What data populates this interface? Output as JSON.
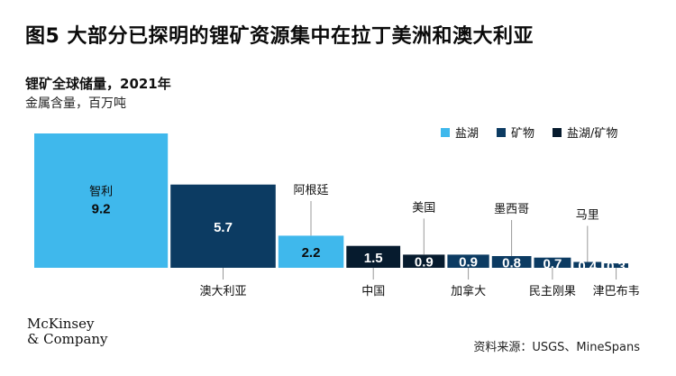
{
  "title": "图5 大部分已探明的锂矿资源集中在拉丁美洲和澳大利亚",
  "subtitle": "锂矿全球储量，2021年",
  "unit": "金属含量，百万吨",
  "source": "资料来源：USGS、MineSpans",
  "logo": {
    "line1": "McKinsey",
    "line2": "& Company"
  },
  "colors": {
    "brine": "#3fb8ec",
    "ore": "#0c3b62",
    "mixed": "#061b2e"
  },
  "chart_data": {
    "type": "bar",
    "title": "锂矿全球储量，2021年",
    "ylabel": "金属含量，百万吨",
    "legend": [
      {
        "name": "盐湖",
        "color": "#3fb8ec"
      },
      {
        "name": "矿物",
        "color": "#0c3b62"
      },
      {
        "name": "盐湖/矿物",
        "color": "#061b2e"
      }
    ],
    "categories": [
      "智利",
      "澳大利亚",
      "阿根廷",
      "中国",
      "美国",
      "加拿大",
      "墨西哥",
      "民主刚果",
      "马里",
      "津巴布韦"
    ],
    "values": [
      9.2,
      5.7,
      2.2,
      1.5,
      0.9,
      0.9,
      0.8,
      0.7,
      0.4,
      0.3
    ],
    "value_labels": [
      "9.2",
      "5.7",
      "2.2",
      "1.5",
      "0.9",
      "0.9",
      "0.8",
      "0.7",
      "0.4",
      "0.3"
    ],
    "types": [
      "盐湖",
      "矿物",
      "盐湖",
      "盐湖/矿物",
      "盐湖/矿物",
      "矿物",
      "矿物",
      "矿物",
      "矿物",
      "矿物"
    ]
  }
}
